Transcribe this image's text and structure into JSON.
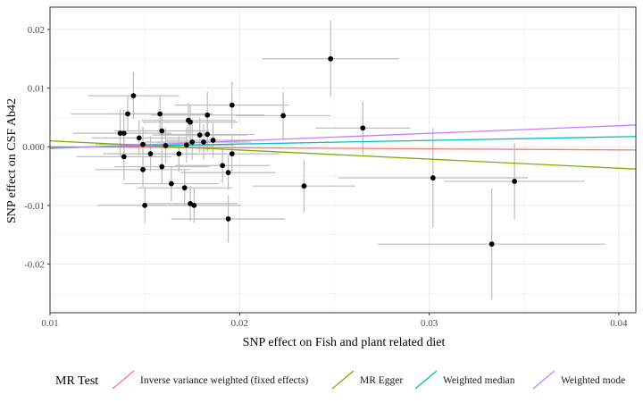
{
  "chart_data": {
    "type": "scatter",
    "xlabel": "SNP effect on Fish and plant related diet",
    "ylabel": "SNP effect on CSF Ab42",
    "xlim": [
      0.01,
      0.0409
    ],
    "ylim": [
      -0.0283,
      0.0238
    ],
    "x_ticks": [
      0.01,
      0.02,
      0.03,
      0.04
    ],
    "x_tick_labels": [
      "0.01",
      "0.02",
      "0.03",
      "0.04"
    ],
    "y_ticks": [
      -0.02,
      -0.01,
      0.0,
      0.01,
      0.02
    ],
    "y_tick_labels": [
      "-0.02",
      "-0.01",
      "0.000",
      "0.01",
      "0.02"
    ],
    "grid": true,
    "legend_position": "bottom",
    "legend_title": "MR Test",
    "points": [
      {
        "x": 0.0248,
        "y": 0.015,
        "xerr": 0.0036,
        "yerr": 0.0065
      },
      {
        "x": 0.0144,
        "y": 0.0087,
        "xerr": 0.0024,
        "yerr": 0.004
      },
      {
        "x": 0.0196,
        "y": 0.0071,
        "xerr": 0.003,
        "yerr": 0.004
      },
      {
        "x": 0.0141,
        "y": 0.0056,
        "xerr": 0.003,
        "yerr": 0.003
      },
      {
        "x": 0.0158,
        "y": 0.0056,
        "xerr": 0.0028,
        "yerr": 0.003
      },
      {
        "x": 0.0183,
        "y": 0.0054,
        "xerr": 0.003,
        "yerr": 0.004
      },
      {
        "x": 0.0223,
        "y": 0.0053,
        "xerr": 0.0025,
        "yerr": 0.004
      },
      {
        "x": 0.0173,
        "y": 0.0045,
        "xerr": 0.0025,
        "yerr": 0.003
      },
      {
        "x": 0.0174,
        "y": 0.0042,
        "xerr": 0.0025,
        "yerr": 0.003
      },
      {
        "x": 0.0265,
        "y": 0.0032,
        "xerr": 0.0025,
        "yerr": 0.0045
      },
      {
        "x": 0.0159,
        "y": 0.0027,
        "xerr": 0.0025,
        "yerr": 0.003
      },
      {
        "x": 0.0137,
        "y": 0.0023,
        "xerr": 0.0025,
        "yerr": 0.004
      },
      {
        "x": 0.0139,
        "y": 0.0023,
        "xerr": 0.0025,
        "yerr": 0.004
      },
      {
        "x": 0.0179,
        "y": 0.002,
        "xerr": 0.0025,
        "yerr": 0.003
      },
      {
        "x": 0.0183,
        "y": 0.0021,
        "xerr": 0.0025,
        "yerr": 0.003
      },
      {
        "x": 0.0147,
        "y": 0.0015,
        "xerr": 0.0025,
        "yerr": 0.003
      },
      {
        "x": 0.0186,
        "y": 0.0011,
        "xerr": 0.0025,
        "yerr": 0.003
      },
      {
        "x": 0.0175,
        "y": 0.0008,
        "xerr": 0.0025,
        "yerr": 0.003
      },
      {
        "x": 0.0181,
        "y": 0.0008,
        "xerr": 0.0025,
        "yerr": 0.003
      },
      {
        "x": 0.0149,
        "y": 0.0004,
        "xerr": 0.0025,
        "yerr": 0.003
      },
      {
        "x": 0.0172,
        "y": 0.0003,
        "xerr": 0.0025,
        "yerr": 0.003
      },
      {
        "x": 0.0161,
        "y": 0.0002,
        "xerr": 0.0025,
        "yerr": 0.003
      },
      {
        "x": 0.0153,
        "y": -0.0012,
        "xerr": 0.0025,
        "yerr": 0.003
      },
      {
        "x": 0.0168,
        "y": -0.0012,
        "xerr": 0.0025,
        "yerr": 0.003
      },
      {
        "x": 0.0196,
        "y": -0.0012,
        "xerr": 0.0025,
        "yerr": 0.003
      },
      {
        "x": 0.0139,
        "y": -0.0017,
        "xerr": 0.0025,
        "yerr": 0.004
      },
      {
        "x": 0.0191,
        "y": -0.0032,
        "xerr": 0.0025,
        "yerr": 0.003
      },
      {
        "x": 0.0159,
        "y": -0.0034,
        "xerr": 0.0025,
        "yerr": 0.003
      },
      {
        "x": 0.0149,
        "y": -0.0039,
        "xerr": 0.0025,
        "yerr": 0.003
      },
      {
        "x": 0.0194,
        "y": -0.0044,
        "xerr": 0.0025,
        "yerr": 0.003
      },
      {
        "x": 0.0302,
        "y": -0.0053,
        "xerr": 0.005,
        "yerr": 0.0085
      },
      {
        "x": 0.0345,
        "y": -0.0059,
        "xerr": 0.0037,
        "yerr": 0.0065
      },
      {
        "x": 0.0164,
        "y": -0.0063,
        "xerr": 0.0025,
        "yerr": 0.003
      },
      {
        "x": 0.0234,
        "y": -0.0067,
        "xerr": 0.0027,
        "yerr": 0.0045
      },
      {
        "x": 0.0171,
        "y": -0.007,
        "xerr": 0.0025,
        "yerr": 0.003
      },
      {
        "x": 0.0174,
        "y": -0.0097,
        "xerr": 0.0025,
        "yerr": 0.003
      },
      {
        "x": 0.0176,
        "y": -0.01,
        "xerr": 0.0025,
        "yerr": 0.003
      },
      {
        "x": 0.015,
        "y": -0.01,
        "xerr": 0.0025,
        "yerr": 0.003
      },
      {
        "x": 0.0194,
        "y": -0.0123,
        "xerr": 0.003,
        "yerr": 0.004
      },
      {
        "x": 0.0333,
        "y": -0.0166,
        "xerr": 0.006,
        "yerr": 0.0095
      }
    ],
    "lines": [
      {
        "name": "Inverse variance weighted (fixed effects)",
        "color": "#F8766D",
        "y_at_xmin": 0.0,
        "y_at_xmax": -0.00055
      },
      {
        "name": "MR Egger",
        "color": "#7CAE00",
        "y_at_xmin": 0.001,
        "y_at_xmax": -0.0038
      },
      {
        "name": "Weighted median",
        "color": "#00BFC4",
        "y_at_xmin": -0.00015,
        "y_at_xmax": 0.00175
      },
      {
        "name": "Weighted mode",
        "color": "#C77CFF",
        "y_at_xmin": -0.0003,
        "y_at_xmax": 0.0037
      }
    ]
  }
}
